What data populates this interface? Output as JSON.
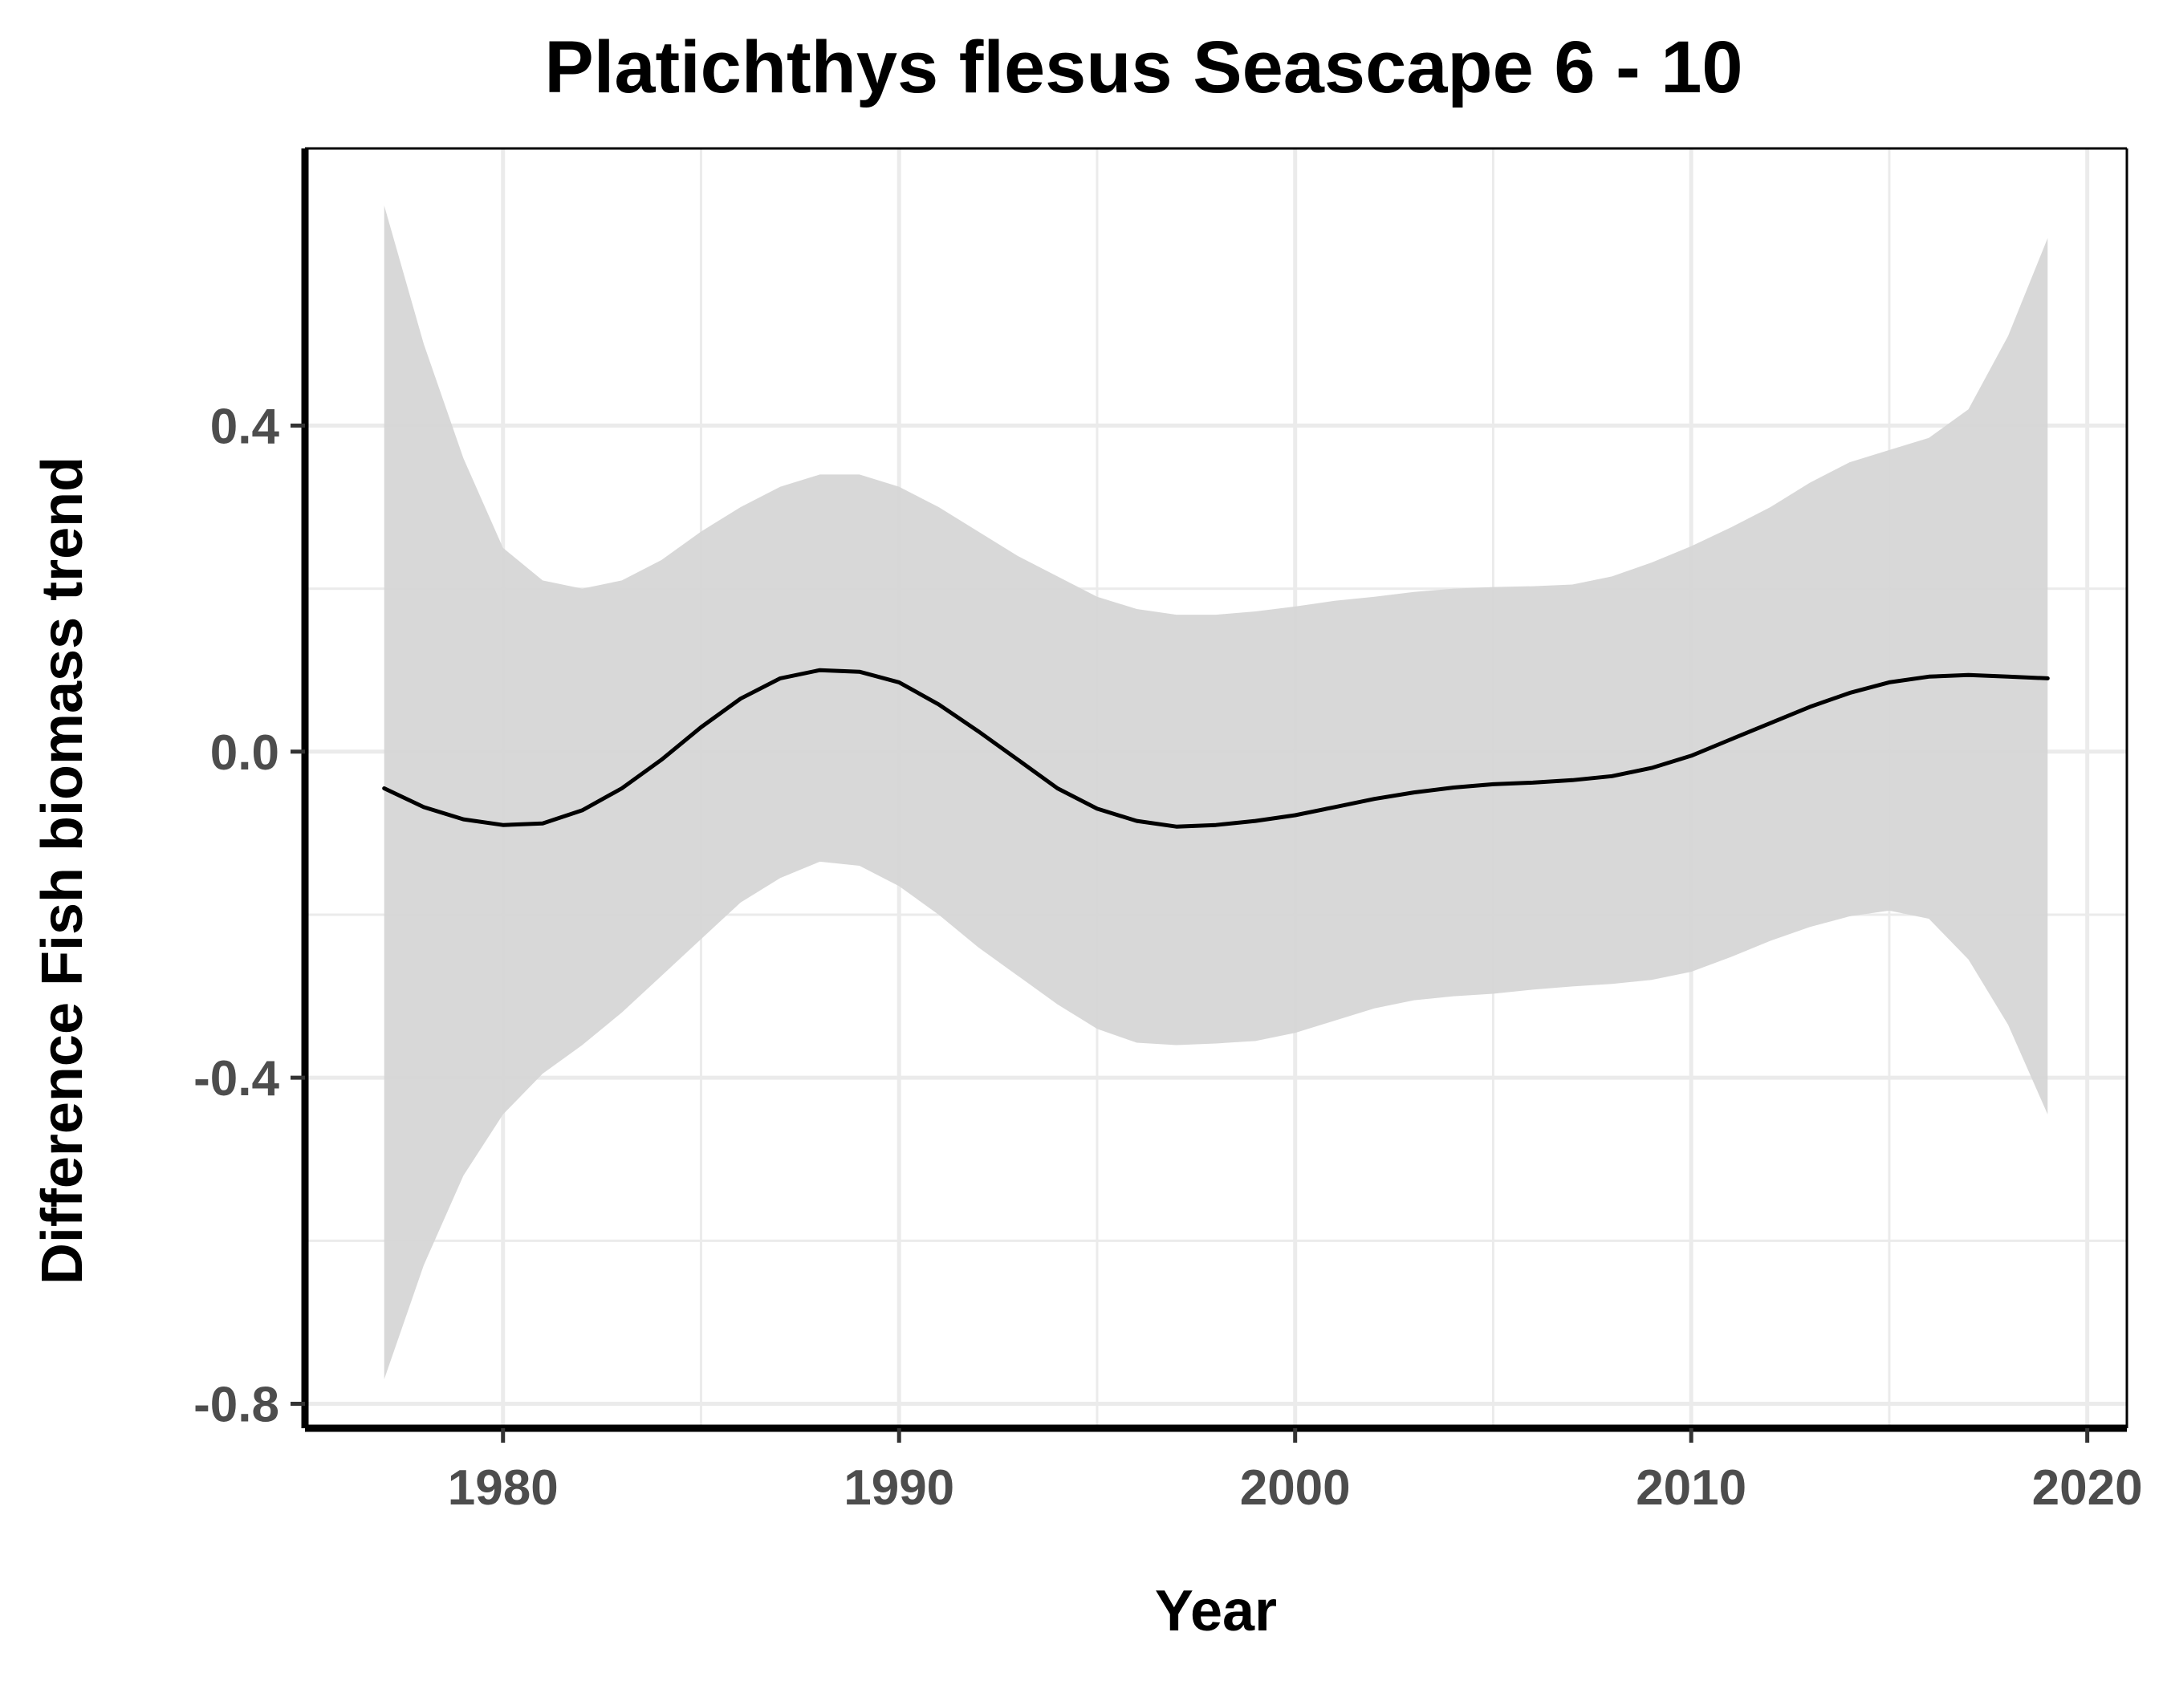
{
  "chart_data": {
    "type": "line",
    "title": "Platichthys flesus Seascape 6 - 10",
    "xlabel": "Year",
    "ylabel": "Difference Fish biomass trend",
    "xlim": [
      1975,
      2021
    ],
    "ylim": [
      -0.83,
      0.74
    ],
    "x_ticks": [
      1980,
      1990,
      2000,
      2010,
      2020
    ],
    "x_tick_labels": [
      "1980",
      "1990",
      "2000",
      "2010",
      "2020"
    ],
    "y_ticks": [
      0.4,
      0.0,
      -0.4,
      -0.8
    ],
    "y_tick_labels": [
      "0.4",
      "0.0",
      "-0.4",
      "-0.8"
    ],
    "x_minor_ticks": [
      1985,
      1995,
      2005,
      2015
    ],
    "y_minor_ticks": [
      0.2,
      -0.2,
      -0.6
    ],
    "grid": true,
    "colors": {
      "line": "#000000",
      "ribbon": "#d6d6d6",
      "grid": "#ebebeb",
      "axis": "#000000"
    },
    "series": [
      {
        "x": [
          1977,
          1978,
          1979,
          1980,
          1981,
          1982,
          1983,
          1984,
          1985,
          1986,
          1987,
          1988,
          1989,
          1990,
          1991,
          1992,
          1993,
          1994,
          1995,
          1996,
          1997,
          1998,
          1999,
          2000,
          2001,
          2002,
          2003,
          2004,
          2005,
          2006,
          2007,
          2008,
          2009,
          2010,
          2011,
          2012,
          2013,
          2014,
          2015,
          2016,
          2017,
          2018,
          2019
        ],
        "y": [
          -0.045,
          -0.068,
          -0.083,
          -0.09,
          -0.088,
          -0.072,
          -0.045,
          -0.01,
          0.03,
          0.065,
          0.09,
          0.1,
          0.098,
          0.085,
          0.058,
          0.025,
          -0.01,
          -0.045,
          -0.07,
          -0.085,
          -0.092,
          -0.09,
          -0.085,
          -0.078,
          -0.068,
          -0.058,
          -0.05,
          -0.044,
          -0.04,
          -0.038,
          -0.035,
          -0.03,
          -0.02,
          -0.005,
          0.015,
          0.035,
          0.055,
          0.072,
          0.085,
          0.092,
          0.094,
          0.092,
          0.09
        ],
        "lower": [
          -0.77,
          -0.63,
          -0.52,
          -0.445,
          -0.395,
          -0.36,
          -0.32,
          -0.275,
          -0.23,
          -0.185,
          -0.155,
          -0.135,
          -0.14,
          -0.165,
          -0.2,
          -0.24,
          -0.275,
          -0.31,
          -0.34,
          -0.357,
          -0.36,
          -0.358,
          -0.355,
          -0.345,
          -0.33,
          -0.315,
          -0.305,
          -0.3,
          -0.297,
          -0.292,
          -0.288,
          -0.285,
          -0.28,
          -0.27,
          -0.252,
          -0.232,
          -0.215,
          -0.202,
          -0.195,
          -0.205,
          -0.255,
          -0.335,
          -0.445
        ],
        "upper": [
          0.67,
          0.5,
          0.36,
          0.25,
          0.21,
          0.2,
          0.21,
          0.235,
          0.27,
          0.3,
          0.325,
          0.34,
          0.34,
          0.325,
          0.3,
          0.27,
          0.24,
          0.215,
          0.19,
          0.175,
          0.168,
          0.168,
          0.172,
          0.178,
          0.185,
          0.19,
          0.196,
          0.2,
          0.202,
          0.203,
          0.205,
          0.215,
          0.232,
          0.252,
          0.275,
          0.3,
          0.33,
          0.355,
          0.37,
          0.385,
          0.42,
          0.51,
          0.63
        ]
      }
    ]
  }
}
